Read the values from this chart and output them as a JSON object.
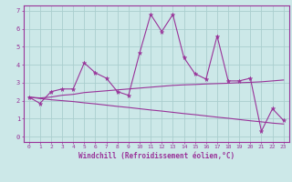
{
  "xlabel": "Windchill (Refroidissement éolien,°C)",
  "bg_color": "#cce8e8",
  "grid_color": "#aacece",
  "line_color": "#993399",
  "x": [
    0,
    1,
    2,
    3,
    4,
    5,
    6,
    7,
    8,
    9,
    10,
    11,
    12,
    13,
    14,
    15,
    16,
    17,
    18,
    19,
    20,
    21,
    22,
    23
  ],
  "y_main": [
    2.2,
    1.85,
    2.5,
    2.65,
    2.65,
    4.1,
    3.55,
    3.25,
    2.5,
    2.3,
    4.65,
    6.8,
    5.85,
    6.8,
    4.4,
    3.5,
    3.2,
    5.6,
    3.1,
    3.1,
    3.25,
    0.3,
    1.55,
    0.9
  ],
  "y_trend1": [
    2.2,
    2.15,
    2.2,
    2.3,
    2.35,
    2.45,
    2.5,
    2.55,
    2.6,
    2.65,
    2.7,
    2.75,
    2.8,
    2.85,
    2.88,
    2.9,
    2.93,
    2.95,
    2.97,
    3.0,
    3.02,
    3.05,
    3.1,
    3.15
  ],
  "y_trend2": [
    2.2,
    2.12,
    2.05,
    2.0,
    1.95,
    1.88,
    1.82,
    1.75,
    1.68,
    1.62,
    1.55,
    1.48,
    1.42,
    1.35,
    1.28,
    1.22,
    1.15,
    1.08,
    1.02,
    0.95,
    0.88,
    0.82,
    0.75,
    0.7
  ],
  "ylim": [
    -0.3,
    7.3
  ],
  "xlim": [
    -0.5,
    23.5
  ],
  "yticks": [
    0,
    1,
    2,
    3,
    4,
    5,
    6,
    7
  ],
  "xticks": [
    0,
    1,
    2,
    3,
    4,
    5,
    6,
    7,
    8,
    9,
    10,
    11,
    12,
    13,
    14,
    15,
    16,
    17,
    18,
    19,
    20,
    21,
    22,
    23
  ]
}
